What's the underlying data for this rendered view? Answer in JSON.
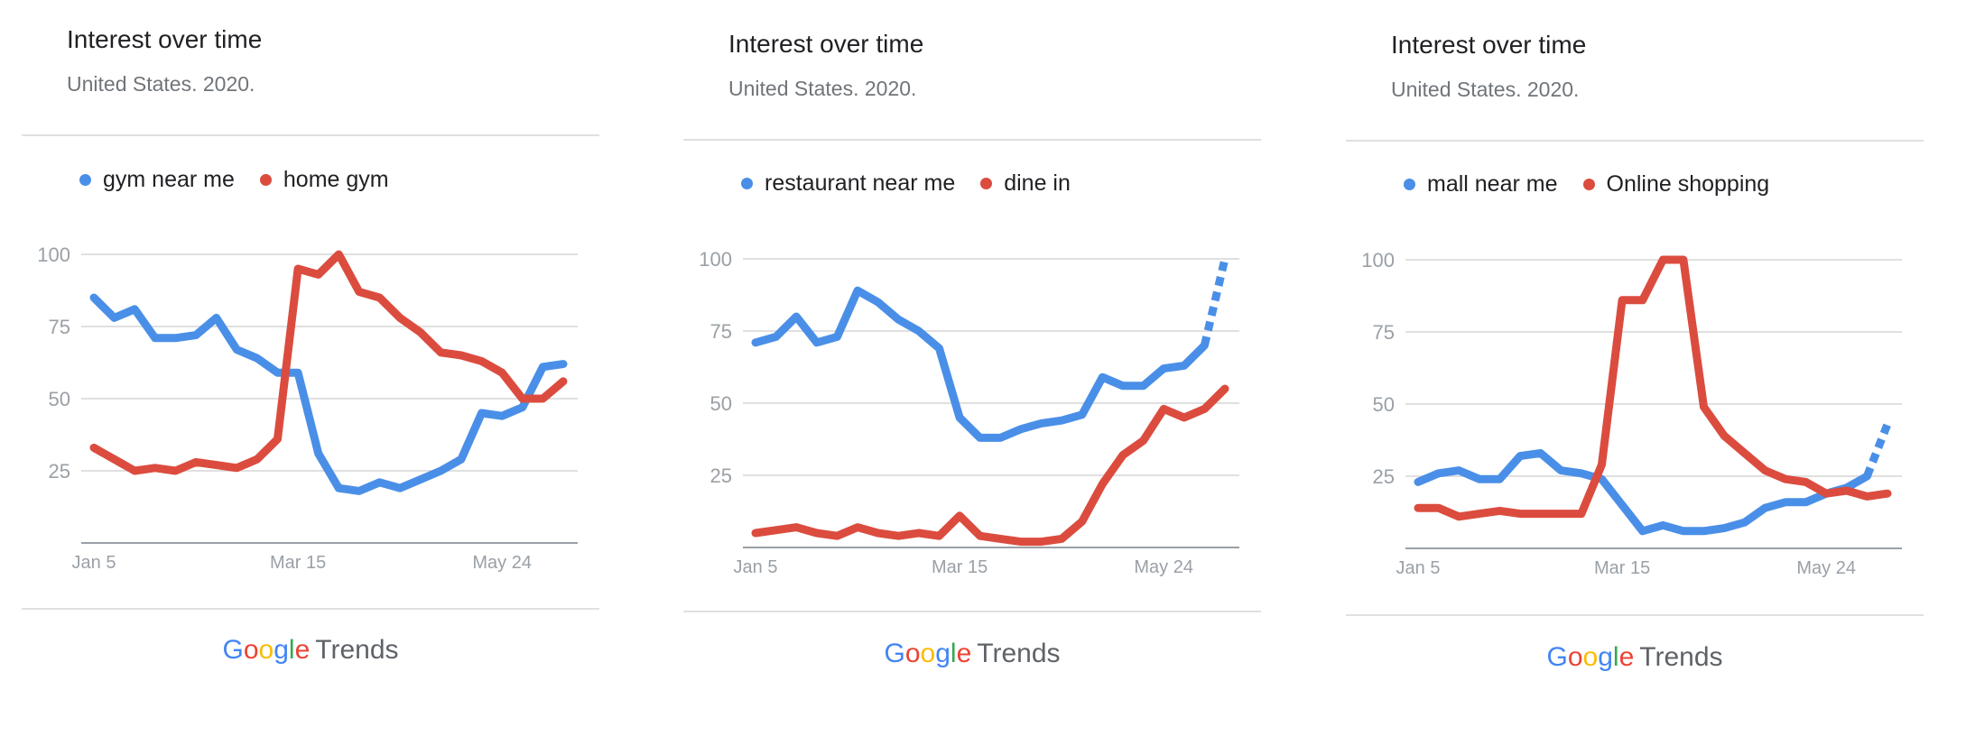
{
  "brand": {
    "letters": [
      {
        "ch": "G",
        "color": "#4285F4"
      },
      {
        "ch": "o",
        "color": "#EA4335"
      },
      {
        "ch": "o",
        "color": "#FBBC05"
      },
      {
        "ch": "g",
        "color": "#4285F4"
      },
      {
        "ch": "l",
        "color": "#34A853"
      },
      {
        "ch": "e",
        "color": "#EA4335"
      }
    ],
    "product": "Trends"
  },
  "colors": {
    "blue": "#4a8fe7",
    "red": "#db4c3f",
    "grid": "#e0e0e0",
    "axis": "#9aa0a6"
  },
  "panels": [
    {
      "title": "Interest over time",
      "subtitle": "United States. 2020."
    },
    {
      "title": "Interest over time",
      "subtitle": "United States. 2020."
    },
    {
      "title": "Interest over time",
      "subtitle": "United States. 2020."
    }
  ],
  "chart_data": [
    {
      "type": "line",
      "title": "Interest over time",
      "subtitle": "United States. 2020.",
      "ylim": [
        0,
        100
      ],
      "yticks": [
        25,
        50,
        75,
        100
      ],
      "x_tick_labels": [
        "Jan 5",
        "Mar 15",
        "May 24"
      ],
      "x_tick_index": [
        0,
        10,
        20
      ],
      "grid": true,
      "legend_position": "top-left",
      "series": [
        {
          "name": "gym near me",
          "color": "#4a8fe7",
          "values": [
            85,
            78,
            81,
            71,
            71,
            72,
            78,
            67,
            64,
            59,
            59,
            31,
            19,
            18,
            21,
            19,
            22,
            25,
            29,
            45,
            44,
            47,
            61,
            62
          ],
          "partial_from": null
        },
        {
          "name": "home gym",
          "color": "#db4c3f",
          "values": [
            33,
            29,
            25,
            26,
            25,
            28,
            27,
            26,
            29,
            36,
            95,
            93,
            100,
            87,
            85,
            78,
            73,
            66,
            65,
            63,
            59,
            50,
            50,
            56
          ],
          "partial_from": null
        }
      ]
    },
    {
      "type": "line",
      "title": "Interest over time",
      "subtitle": "United States. 2020.",
      "ylim": [
        0,
        100
      ],
      "yticks": [
        25,
        50,
        75,
        100
      ],
      "x_tick_labels": [
        "Jan 5",
        "Mar 15",
        "May 24"
      ],
      "x_tick_index": [
        0,
        10,
        20
      ],
      "grid": true,
      "legend_position": "top-left",
      "series": [
        {
          "name": "restaurant near me",
          "color": "#4a8fe7",
          "values": [
            71,
            73,
            80,
            71,
            73,
            89,
            85,
            79,
            75,
            69,
            45,
            38,
            38,
            41,
            43,
            44,
            46,
            59,
            56,
            56,
            62,
            63,
            70,
            100
          ],
          "partial_from": 22
        },
        {
          "name": "dine in",
          "color": "#db4c3f",
          "values": [
            5,
            6,
            7,
            5,
            4,
            7,
            5,
            4,
            5,
            4,
            11,
            4,
            3,
            2,
            2,
            3,
            9,
            22,
            32,
            37,
            48,
            45,
            48,
            55
          ],
          "partial_from": null
        }
      ]
    },
    {
      "type": "line",
      "title": "Interest over time",
      "subtitle": "United States. 2020.",
      "ylim": [
        0,
        100
      ],
      "yticks": [
        25,
        50,
        75,
        100
      ],
      "x_tick_labels": [
        "Jan 5",
        "Mar 15",
        "May 24"
      ],
      "x_tick_index": [
        0,
        10,
        20
      ],
      "grid": true,
      "legend_position": "top-left",
      "series": [
        {
          "name": "mall near me",
          "color": "#4a8fe7",
          "values": [
            23,
            26,
            27,
            24,
            24,
            32,
            33,
            27,
            26,
            24,
            15,
            6,
            8,
            6,
            6,
            7,
            9,
            14,
            16,
            16,
            19,
            21,
            25,
            43
          ],
          "partial_from": 22
        },
        {
          "name": "Online shopping",
          "color": "#db4c3f",
          "values": [
            14,
            14,
            11,
            12,
            13,
            12,
            12,
            12,
            12,
            29,
            86,
            86,
            100,
            100,
            49,
            39,
            33,
            27,
            24,
            23,
            19,
            20,
            18,
            19
          ],
          "partial_from": null
        }
      ]
    }
  ]
}
